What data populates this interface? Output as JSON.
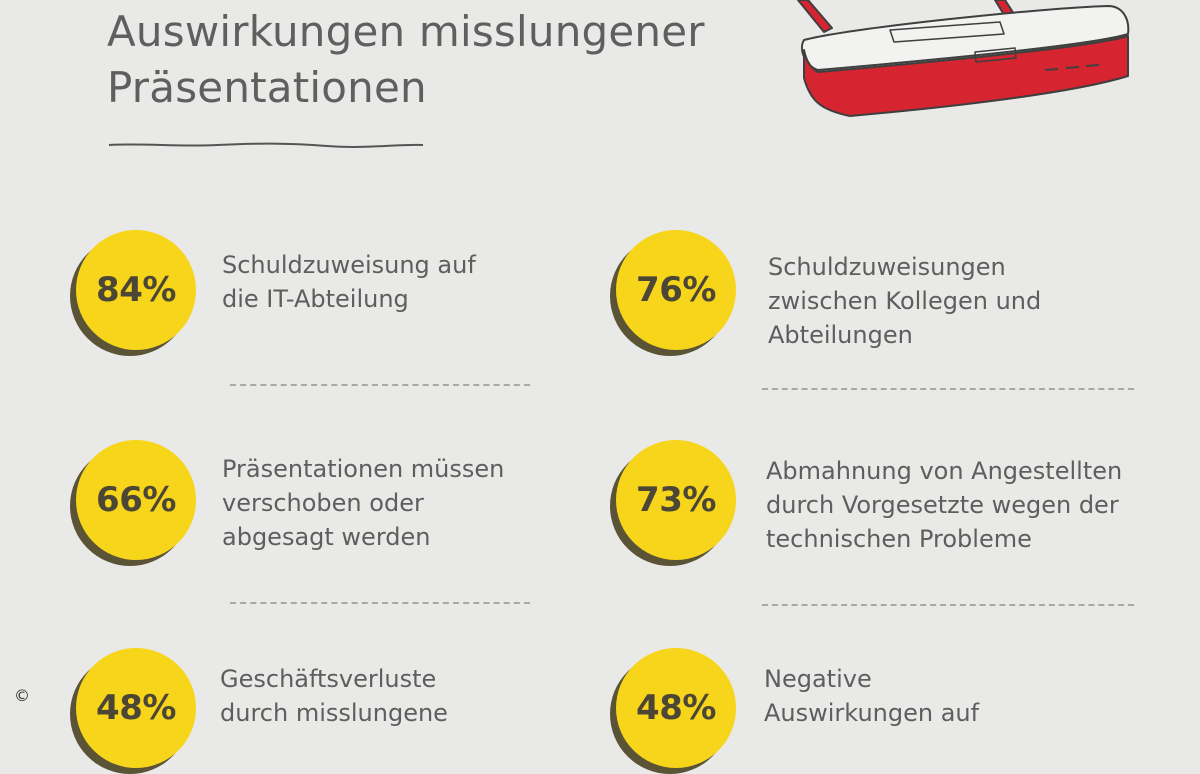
{
  "header": {
    "title": "Auswirkungen misslungener Präsentationen"
  },
  "stats": [
    {
      "value": "84%",
      "text": "Schuldzuweisung auf\ndie IT-Abteilung"
    },
    {
      "value": "76%",
      "text": "Schuldzuweisungen\nzwischen Kollegen und\nAbteilungen"
    },
    {
      "value": "66%",
      "text": "Präsentationen müssen\nverschoben oder\nabgesagt werden"
    },
    {
      "value": "73%",
      "text": "Abmahnung von Angestellten\ndurch Vorgesetzte wegen der\ntechnischen Probleme"
    },
    {
      "value": "48%",
      "text": "Geschäftsverluste\ndurch misslungene"
    },
    {
      "value": "48%",
      "text": "Negative\nAuswirkungen auf"
    }
  ],
  "footer": {
    "copyright_symbol": "©"
  },
  "colors": {
    "badge": "#f7d51a",
    "badge_shadow": "#5b5336",
    "router_red": "#d62430",
    "background": "#e9e9e7"
  },
  "icons": {
    "router": "router-illustration",
    "copyright": "copyright-icon"
  }
}
